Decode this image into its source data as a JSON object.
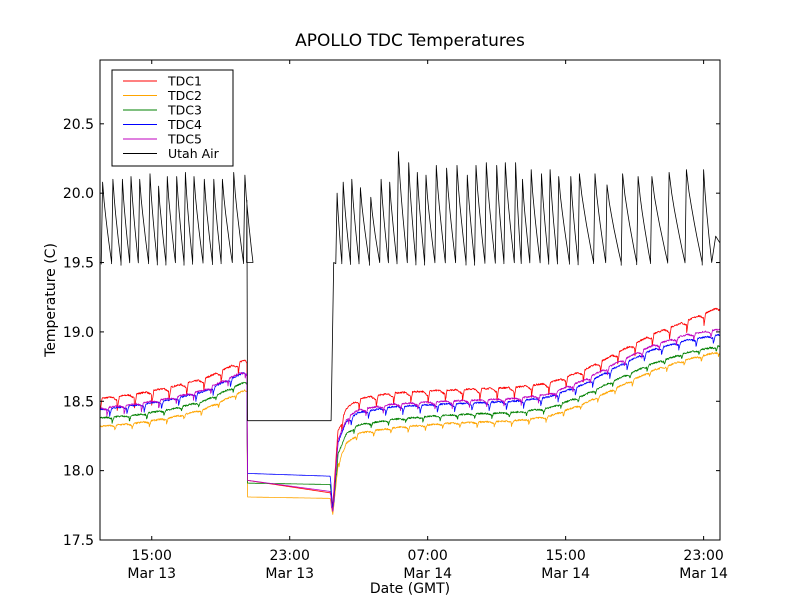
{
  "chart_data": {
    "type": "line",
    "title": "APOLLO TDC Temperatures",
    "xlabel": "Date (GMT)",
    "ylabel": "Temperature (C)",
    "x_units": "hours since 12:00 Mar 13 (GMT)",
    "xlim": [
      0,
      35.95
    ],
    "ylim": [
      17.5,
      20.96
    ],
    "yticks": [
      17.5,
      18.0,
      18.5,
      19.0,
      19.5,
      20.0,
      20.5
    ],
    "ytick_labels": [
      "17.5",
      "18.0",
      "18.5",
      "19.0",
      "19.5",
      "20.0",
      "20.5"
    ],
    "xticks": [
      3,
      11,
      19,
      27,
      35
    ],
    "xtick_labels": [
      [
        "15:00",
        "Mar 13"
      ],
      [
        "23:00",
        "Mar 13"
      ],
      [
        "07:00",
        "Mar 14"
      ],
      [
        "15:00",
        "Mar 14"
      ],
      [
        "23:00",
        "Mar 14"
      ]
    ],
    "grid": false,
    "legend": {
      "placement": "top-left"
    },
    "series": [
      {
        "name": "TDC1",
        "color": "#ff0000",
        "pattern": "sawtooth",
        "period_h": 1.0,
        "amplitude": 0.1,
        "baseline": [
          [
            0,
            18.52
          ],
          [
            2,
            18.55
          ],
          [
            4,
            18.6
          ],
          [
            6,
            18.66
          ],
          [
            8.4,
            18.8
          ],
          [
            8.52,
            18.78
          ],
          [
            8.55,
            17.93
          ],
          [
            13.35,
            17.84
          ],
          [
            13.5,
            17.75
          ],
          [
            13.8,
            18.3
          ],
          [
            14.3,
            18.45
          ],
          [
            15,
            18.52
          ],
          [
            17,
            18.56
          ],
          [
            20,
            18.58
          ],
          [
            24,
            18.6
          ],
          [
            26,
            18.63
          ],
          [
            28,
            18.72
          ],
          [
            30,
            18.85
          ],
          [
            32,
            18.98
          ],
          [
            34,
            19.08
          ],
          [
            35.95,
            19.18
          ]
        ]
      },
      {
        "name": "TDC2",
        "color": "#ffa500",
        "pattern": "sawtooth",
        "period_h": 1.0,
        "amplitude": 0.04,
        "baseline": [
          [
            0,
            18.32
          ],
          [
            2,
            18.34
          ],
          [
            4,
            18.38
          ],
          [
            6,
            18.44
          ],
          [
            8.4,
            18.58
          ],
          [
            8.52,
            18.57
          ],
          [
            8.55,
            17.81
          ],
          [
            13.35,
            17.8
          ],
          [
            13.5,
            17.68
          ],
          [
            13.8,
            18.05
          ],
          [
            14.3,
            18.2
          ],
          [
            15,
            18.27
          ],
          [
            17,
            18.31
          ],
          [
            20,
            18.34
          ],
          [
            24,
            18.36
          ],
          [
            26,
            18.39
          ],
          [
            28,
            18.48
          ],
          [
            30,
            18.6
          ],
          [
            32,
            18.72
          ],
          [
            34,
            18.8
          ],
          [
            35.95,
            18.86
          ]
        ]
      },
      {
        "name": "TDC3",
        "color": "#008000",
        "pattern": "sawtooth",
        "period_h": 1.0,
        "amplitude": 0.04,
        "baseline": [
          [
            0,
            18.38
          ],
          [
            2,
            18.4
          ],
          [
            4,
            18.44
          ],
          [
            6,
            18.5
          ],
          [
            8.4,
            18.64
          ],
          [
            8.52,
            18.63
          ],
          [
            8.55,
            17.91
          ],
          [
            13.35,
            17.9
          ],
          [
            13.5,
            17.72
          ],
          [
            13.8,
            18.12
          ],
          [
            14.3,
            18.27
          ],
          [
            15,
            18.33
          ],
          [
            17,
            18.37
          ],
          [
            20,
            18.4
          ],
          [
            24,
            18.42
          ],
          [
            26,
            18.45
          ],
          [
            28,
            18.54
          ],
          [
            30,
            18.66
          ],
          [
            32,
            18.77
          ],
          [
            34,
            18.85
          ],
          [
            35.95,
            18.9
          ]
        ]
      },
      {
        "name": "TDC4",
        "color": "#0000ff",
        "pattern": "sawtooth",
        "period_h": 1.0,
        "amplitude": 0.06,
        "baseline": [
          [
            0,
            18.44
          ],
          [
            2,
            18.47
          ],
          [
            4,
            18.51
          ],
          [
            6,
            18.57
          ],
          [
            8.4,
            18.71
          ],
          [
            8.52,
            18.7
          ],
          [
            8.55,
            17.98
          ],
          [
            13.35,
            17.96
          ],
          [
            13.5,
            17.73
          ],
          [
            13.8,
            18.2
          ],
          [
            14.3,
            18.36
          ],
          [
            15,
            18.42
          ],
          [
            17,
            18.46
          ],
          [
            20,
            18.48
          ],
          [
            24,
            18.5
          ],
          [
            26,
            18.53
          ],
          [
            28,
            18.62
          ],
          [
            30,
            18.75
          ],
          [
            32,
            18.87
          ],
          [
            34,
            18.94
          ],
          [
            35.95,
            18.98
          ]
        ]
      },
      {
        "name": "TDC5",
        "color": "#bf00bf",
        "pattern": "sawtooth",
        "period_h": 1.0,
        "amplitude": 0.06,
        "baseline": [
          [
            0,
            18.45
          ],
          [
            2,
            18.48
          ],
          [
            4,
            18.52
          ],
          [
            6,
            18.58
          ],
          [
            8.4,
            18.72
          ],
          [
            8.52,
            18.71
          ],
          [
            8.55,
            17.93
          ],
          [
            13.35,
            17.85
          ],
          [
            13.5,
            17.72
          ],
          [
            13.8,
            18.22
          ],
          [
            14.3,
            18.38
          ],
          [
            15,
            18.44
          ],
          [
            17,
            18.48
          ],
          [
            20,
            18.5
          ],
          [
            24,
            18.52
          ],
          [
            26,
            18.55
          ],
          [
            28,
            18.65
          ],
          [
            30,
            18.78
          ],
          [
            32,
            18.9
          ],
          [
            34,
            18.98
          ],
          [
            35.95,
            19.02
          ]
        ]
      },
      {
        "name": "Utah Air",
        "color": "#000000",
        "pattern": "cycles",
        "low": 19.5,
        "peaks": [
          [
            0.15,
            20.08
          ],
          [
            0.75,
            20.1
          ],
          [
            1.3,
            20.1
          ],
          [
            1.8,
            20.12
          ],
          [
            2.3,
            20.1
          ],
          [
            2.9,
            20.14
          ],
          [
            3.4,
            20.05
          ],
          [
            3.9,
            20.12
          ],
          [
            4.45,
            20.12
          ],
          [
            4.95,
            20.15
          ],
          [
            5.45,
            20.12
          ],
          [
            6.05,
            20.1
          ],
          [
            6.6,
            20.1
          ],
          [
            7.1,
            20.1
          ],
          [
            7.75,
            20.15
          ],
          [
            8.4,
            20.13
          ]
        ],
        "gap_points": [
          [
            8.5,
            19.5
          ],
          [
            8.52,
            19.95
          ],
          [
            8.55,
            18.36
          ],
          [
            13.4,
            18.36
          ],
          [
            13.55,
            19.5
          ]
        ],
        "peaks_after": [
          [
            13.75,
            20.0
          ],
          [
            14.1,
            20.08
          ],
          [
            14.6,
            20.1
          ],
          [
            15.1,
            20.04
          ],
          [
            15.7,
            19.97
          ],
          [
            16.3,
            20.1
          ],
          [
            16.8,
            20.08
          ],
          [
            17.3,
            20.3
          ],
          [
            17.9,
            20.22
          ],
          [
            18.4,
            20.15
          ],
          [
            18.9,
            20.13
          ],
          [
            19.5,
            20.2
          ],
          [
            20.1,
            20.18
          ],
          [
            20.7,
            20.2
          ],
          [
            21.3,
            20.13
          ],
          [
            21.8,
            20.2
          ],
          [
            22.4,
            20.22
          ],
          [
            23.0,
            20.2
          ],
          [
            23.5,
            20.22
          ],
          [
            24.1,
            20.22
          ],
          [
            24.5,
            20.1
          ],
          [
            25.0,
            20.17
          ],
          [
            25.6,
            20.14
          ],
          [
            26.1,
            20.17
          ],
          [
            26.6,
            20.12
          ],
          [
            27.3,
            20.12
          ],
          [
            27.8,
            20.14
          ],
          [
            28.7,
            20.14
          ],
          [
            29.4,
            20.06
          ],
          [
            30.3,
            20.14
          ],
          [
            31.2,
            20.12
          ],
          [
            32.0,
            20.12
          ],
          [
            33.0,
            20.15
          ],
          [
            34.0,
            20.17
          ],
          [
            35.0,
            20.17
          ]
        ],
        "end_value": 19.64
      }
    ]
  }
}
